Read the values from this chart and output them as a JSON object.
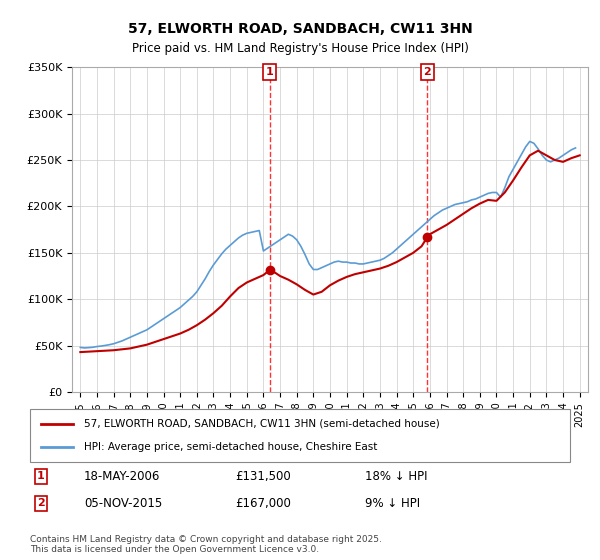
{
  "title": "57, ELWORTH ROAD, SANDBACH, CW11 3HN",
  "subtitle": "Price paid vs. HM Land Registry's House Price Index (HPI)",
  "hpi_label": "HPI: Average price, semi-detached house, Cheshire East",
  "price_label": "57, ELWORTH ROAD, SANDBACH, CW11 3HN (semi-detached house)",
  "footnote": "Contains HM Land Registry data © Crown copyright and database right 2025.\nThis data is licensed under the Open Government Licence v3.0.",
  "transaction_1_date": "18-MAY-2006",
  "transaction_1_price": "£131,500",
  "transaction_1_hpi": "18% ↓ HPI",
  "transaction_2_date": "05-NOV-2015",
  "transaction_2_price": "£167,000",
  "transaction_2_hpi": "9% ↓ HPI",
  "vline1_year": 2006.38,
  "vline2_year": 2015.85,
  "ylim": [
    0,
    350000
  ],
  "xlim_left": 1994.5,
  "xlim_right": 2025.5,
  "hpi_color": "#5B9BD5",
  "price_color": "#C00000",
  "vline_color": "#FF0000",
  "background_color": "#FFFFFF",
  "grid_color": "#CCCCCC",
  "hpi_data_x": [
    1995.0,
    1995.25,
    1995.5,
    1995.75,
    1996.0,
    1996.25,
    1996.5,
    1996.75,
    1997.0,
    1997.25,
    1997.5,
    1997.75,
    1998.0,
    1998.25,
    1998.5,
    1998.75,
    1999.0,
    1999.25,
    1999.5,
    1999.75,
    2000.0,
    2000.25,
    2000.5,
    2000.75,
    2001.0,
    2001.25,
    2001.5,
    2001.75,
    2002.0,
    2002.25,
    2002.5,
    2002.75,
    2003.0,
    2003.25,
    2003.5,
    2003.75,
    2004.0,
    2004.25,
    2004.5,
    2004.75,
    2005.0,
    2005.25,
    2005.5,
    2005.75,
    2006.0,
    2006.25,
    2006.5,
    2006.75,
    2007.0,
    2007.25,
    2007.5,
    2007.75,
    2008.0,
    2008.25,
    2008.5,
    2008.75,
    2009.0,
    2009.25,
    2009.5,
    2009.75,
    2010.0,
    2010.25,
    2010.5,
    2010.75,
    2011.0,
    2011.25,
    2011.5,
    2011.75,
    2012.0,
    2012.25,
    2012.5,
    2012.75,
    2013.0,
    2013.25,
    2013.5,
    2013.75,
    2014.0,
    2014.25,
    2014.5,
    2014.75,
    2015.0,
    2015.25,
    2015.5,
    2015.75,
    2016.0,
    2016.25,
    2016.5,
    2016.75,
    2017.0,
    2017.25,
    2017.5,
    2017.75,
    2018.0,
    2018.25,
    2018.5,
    2018.75,
    2019.0,
    2019.25,
    2019.5,
    2019.75,
    2020.0,
    2020.25,
    2020.5,
    2020.75,
    2021.0,
    2021.25,
    2021.5,
    2021.75,
    2022.0,
    2022.25,
    2022.5,
    2022.75,
    2023.0,
    2023.25,
    2023.5,
    2023.75,
    2024.0,
    2024.25,
    2024.5,
    2024.75
  ],
  "hpi_data_y": [
    48000,
    47500,
    47800,
    48200,
    49000,
    49500,
    50200,
    51000,
    52000,
    53500,
    55000,
    57000,
    59000,
    61000,
    63000,
    65000,
    67000,
    70000,
    73000,
    76000,
    79000,
    82000,
    85000,
    88000,
    91000,
    95000,
    99000,
    103000,
    108000,
    115000,
    122000,
    130000,
    137000,
    143000,
    149000,
    154000,
    158000,
    162000,
    166000,
    169000,
    171000,
    172000,
    173000,
    174000,
    152000,
    155000,
    158000,
    161000,
    164000,
    167000,
    170000,
    168000,
    164000,
    157000,
    148000,
    138000,
    132000,
    132000,
    134000,
    136000,
    138000,
    140000,
    141000,
    140000,
    140000,
    139000,
    139000,
    138000,
    138000,
    139000,
    140000,
    141000,
    142000,
    144000,
    147000,
    150000,
    154000,
    158000,
    162000,
    166000,
    170000,
    174000,
    178000,
    182000,
    186000,
    190000,
    193000,
    196000,
    198000,
    200000,
    202000,
    203000,
    204000,
    205000,
    207000,
    208000,
    210000,
    212000,
    214000,
    215000,
    215000,
    210000,
    220000,
    232000,
    240000,
    248000,
    256000,
    264000,
    270000,
    268000,
    262000,
    255000,
    250000,
    248000,
    250000,
    252000,
    255000,
    258000,
    261000,
    263000
  ],
  "price_data_x": [
    1995.0,
    1995.5,
    1996.0,
    1996.5,
    1997.0,
    1997.5,
    1998.0,
    1998.5,
    1999.0,
    1999.5,
    2000.0,
    2000.5,
    2001.0,
    2001.5,
    2002.0,
    2002.5,
    2003.0,
    2003.5,
    2004.0,
    2004.5,
    2005.0,
    2005.5,
    2006.0,
    2006.38,
    2006.75,
    2007.0,
    2007.5,
    2008.0,
    2008.5,
    2009.0,
    2009.5,
    2010.0,
    2010.5,
    2011.0,
    2011.5,
    2012.0,
    2012.5,
    2013.0,
    2013.5,
    2014.0,
    2014.5,
    2015.0,
    2015.5,
    2015.85,
    2016.0,
    2016.5,
    2017.0,
    2017.5,
    2018.0,
    2018.5,
    2019.0,
    2019.5,
    2020.0,
    2020.5,
    2021.0,
    2021.5,
    2022.0,
    2022.5,
    2023.0,
    2023.5,
    2024.0,
    2024.5,
    2025.0
  ],
  "price_data_y": [
    43000,
    43500,
    44000,
    44500,
    45000,
    46000,
    47000,
    49000,
    51000,
    54000,
    57000,
    60000,
    63000,
    67000,
    72000,
    78000,
    85000,
    93000,
    103000,
    112000,
    118000,
    122000,
    126000,
    131500,
    128000,
    125000,
    121000,
    116000,
    110000,
    105000,
    108000,
    115000,
    120000,
    124000,
    127000,
    129000,
    131000,
    133000,
    136000,
    140000,
    145000,
    150000,
    157000,
    167000,
    170000,
    175000,
    180000,
    186000,
    192000,
    198000,
    203000,
    207000,
    206000,
    215000,
    228000,
    242000,
    255000,
    260000,
    255000,
    250000,
    248000,
    252000,
    255000
  ]
}
